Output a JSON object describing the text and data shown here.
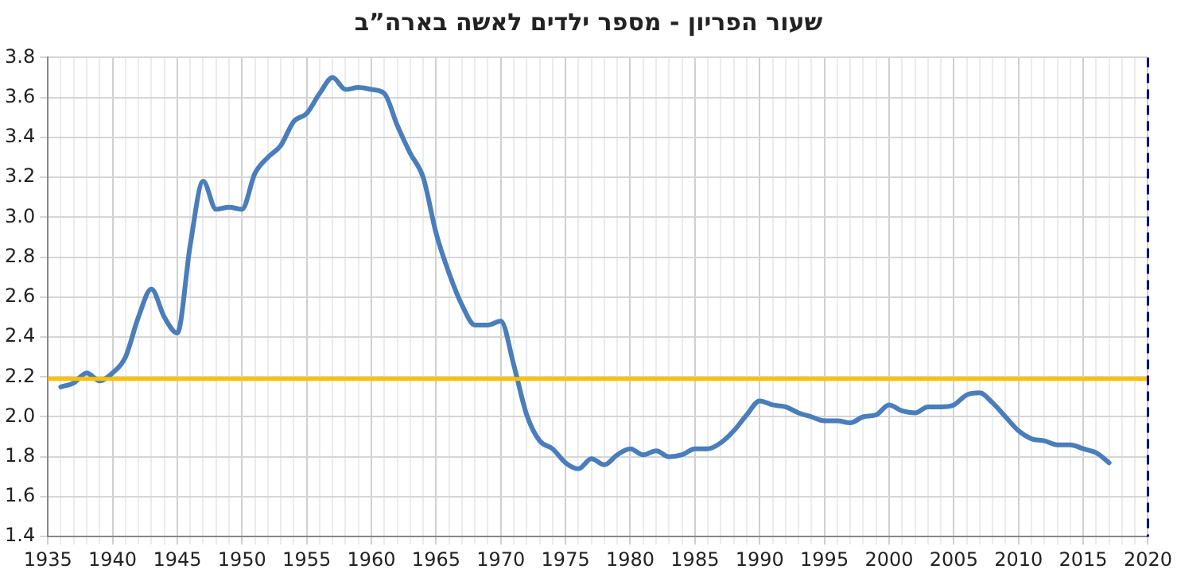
{
  "chart_data": {
    "type": "line",
    "title": "שעור הפריון - מספר ילדים לאשה בארה”ב",
    "x": [
      1936,
      1937,
      1938,
      1939,
      1940,
      1941,
      1942,
      1943,
      1944,
      1945,
      1946,
      1947,
      1948,
      1949,
      1950,
      1951,
      1952,
      1953,
      1954,
      1955,
      1956,
      1957,
      1958,
      1959,
      1960,
      1961,
      1962,
      1963,
      1964,
      1965,
      1966,
      1967,
      1968,
      1969,
      1970,
      1971,
      1972,
      1973,
      1974,
      1975,
      1976,
      1977,
      1978,
      1979,
      1980,
      1981,
      1982,
      1983,
      1984,
      1985,
      1986,
      1987,
      1988,
      1989,
      1990,
      1991,
      1992,
      1993,
      1994,
      1995,
      1996,
      1997,
      1998,
      1999,
      2000,
      2001,
      2002,
      2003,
      2004,
      2005,
      2006,
      2007,
      2008,
      2009,
      2010,
      2011,
      2012,
      2013,
      2014,
      2015,
      2016,
      2017
    ],
    "series": [
      {
        "color": "#4a7ebb",
        "values": [
          2.15,
          2.17,
          2.22,
          2.18,
          2.22,
          2.3,
          2.5,
          2.64,
          2.5,
          2.42,
          2.86,
          3.18,
          3.04,
          3.05,
          3.04,
          3.22,
          3.3,
          3.36,
          3.48,
          3.52,
          3.62,
          3.7,
          3.64,
          3.65,
          3.64,
          3.62,
          3.46,
          3.32,
          3.2,
          2.92,
          2.72,
          2.56,
          2.46,
          2.46,
          2.48,
          2.26,
          2.01,
          1.88,
          1.84,
          1.77,
          1.74,
          1.79,
          1.76,
          1.81,
          1.84,
          1.81,
          1.83,
          1.8,
          1.81,
          1.84,
          1.84,
          1.87,
          1.93,
          2.01,
          2.08,
          2.06,
          2.05,
          2.02,
          2.0,
          1.98,
          1.98,
          1.97,
          2.0,
          2.01,
          2.06,
          2.03,
          2.02,
          2.05,
          2.05,
          2.06,
          2.11,
          2.12,
          2.07,
          2.0,
          1.93,
          1.89,
          1.88,
          1.86,
          1.86,
          1.84,
          1.82,
          1.77
        ]
      }
    ],
    "xlim": [
      1935,
      2020
    ],
    "xticks": [
      1935,
      {
        "value": 1936,
        "label": null
      },
      {
        "value": 1937,
        "label": null
      },
      {
        "value": 1938,
        "label": null
      },
      {
        "value": 1939,
        "label": null
      },
      1940,
      {
        "value": 1941,
        "label": null
      },
      {
        "value": 1942,
        "label": null
      },
      {
        "value": 1943,
        "label": null
      },
      {
        "value": 1944,
        "label": null
      },
      1945,
      {
        "value": 1946,
        "label": null
      },
      {
        "value": 1947,
        "label": null
      },
      {
        "value": 1948,
        "label": null
      },
      {
        "value": 1949,
        "label": null
      },
      1950,
      {
        "value": 1951,
        "label": null
      },
      {
        "value": 1952,
        "label": null
      },
      {
        "value": 1953,
        "label": null
      },
      {
        "value": 1954,
        "label": null
      },
      1955,
      {
        "value": 1956,
        "label": null
      },
      {
        "value": 1957,
        "label": null
      },
      {
        "value": 1958,
        "label": null
      },
      {
        "value": 1959,
        "label": null
      },
      1960,
      {
        "value": 1961,
        "label": null
      },
      {
        "value": 1962,
        "label": null
      },
      {
        "value": 1963,
        "label": null
      },
      {
        "value": 1964,
        "label": null
      },
      1965,
      {
        "value": 1966,
        "label": null
      },
      {
        "value": 1967,
        "label": null
      },
      {
        "value": 1968,
        "label": null
      },
      {
        "value": 1969,
        "label": null
      },
      1970,
      {
        "value": 1971,
        "label": null
      },
      {
        "value": 1972,
        "label": null
      },
      {
        "value": 1973,
        "label": null
      },
      {
        "value": 1974,
        "label": null
      },
      1975,
      {
        "value": 1976,
        "label": null
      },
      {
        "value": 1977,
        "label": null
      },
      {
        "value": 1978,
        "label": null
      },
      {
        "value": 1979,
        "label": null
      },
      1980,
      {
        "value": 1981,
        "label": null
      },
      {
        "value": 1982,
        "label": null
      },
      {
        "value": 1983,
        "label": null
      },
      {
        "value": 1984,
        "label": null
      },
      1985,
      {
        "value": 1986,
        "label": null
      },
      {
        "value": 1987,
        "label": null
      },
      {
        "value": 1988,
        "label": null
      },
      {
        "value": 1989,
        "label": null
      },
      1990,
      {
        "value": 1991,
        "label": null
      },
      {
        "value": 1992,
        "label": null
      },
      {
        "value": 1993,
        "label": null
      },
      {
        "value": 1994,
        "label": null
      },
      1995,
      {
        "value": 1996,
        "label": null
      },
      {
        "value": 1997,
        "label": null
      },
      {
        "value": 1998,
        "label": null
      },
      {
        "value": 1999,
        "label": null
      },
      2000,
      {
        "value": 2001,
        "label": null
      },
      {
        "value": 2002,
        "label": null
      },
      {
        "value": 2003,
        "label": null
      },
      {
        "value": 2004,
        "label": null
      },
      2005,
      {
        "value": 2006,
        "label": null
      },
      {
        "value": 2007,
        "label": null
      },
      {
        "value": 2008,
        "label": null
      },
      {
        "value": 2009,
        "label": null
      },
      2010,
      {
        "value": 2011,
        "label": null
      },
      {
        "value": 2012,
        "label": null
      },
      {
        "value": 2013,
        "label": null
      },
      {
        "value": 2014,
        "label": null
      },
      2015,
      {
        "value": 2016,
        "label": null
      },
      {
        "value": 2017,
        "label": null
      },
      {
        "value": 2018,
        "label": null
      },
      {
        "value": 2019,
        "label": null
      },
      2020
    ],
    "ylim": [
      1.4,
      3.8
    ],
    "yticks": [
      {
        "value": 1.4,
        "label": "1.4"
      },
      {
        "value": 1.6,
        "label": "1.6"
      },
      {
        "value": 1.8,
        "label": "1.8"
      },
      {
        "value": 2.0,
        "label": "2.0"
      },
      {
        "value": 2.2,
        "label": "2.2"
      },
      {
        "value": 2.4,
        "label": "2.4"
      },
      {
        "value": 2.6,
        "label": "2.6"
      },
      {
        "value": 2.8,
        "label": "2.8"
      },
      {
        "value": 3.0,
        "label": "3.0"
      },
      {
        "value": 3.2,
        "label": "3.2"
      },
      {
        "value": 3.4,
        "label": "3.4"
      },
      {
        "value": 3.6,
        "label": "3.6"
      },
      {
        "value": 3.8,
        "label": "3.8"
      }
    ],
    "ref_lines": [
      {
        "axis": "y",
        "value": 2.19,
        "color": "#ffc000"
      },
      {
        "axis": "x",
        "value": 2020,
        "color": "#00008b",
        "line_style": "dashed"
      }
    ],
    "grid": true,
    "legend": false,
    "marker": "none",
    "line_style": "solid"
  }
}
